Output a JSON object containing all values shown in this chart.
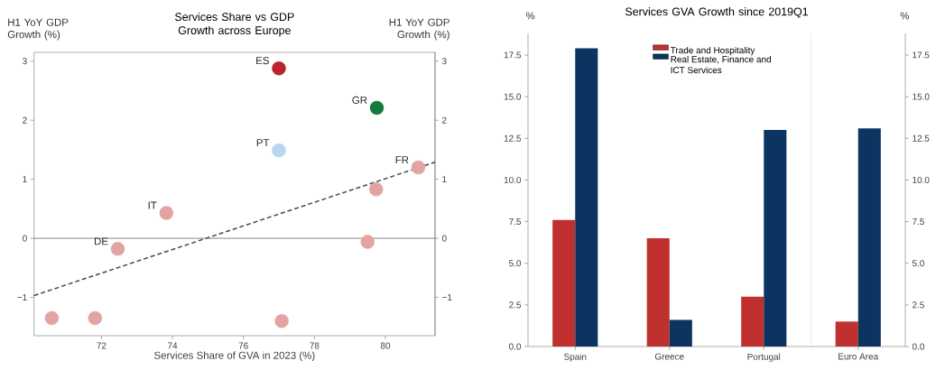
{
  "chart_data": [
    {
      "type": "scatter",
      "title": "Services Share vs GDP Growth across Europe",
      "xlabel": "Services Share of GVA in 2023 (%)",
      "ylabel": "H1 YoY GDP Growth (%)",
      "y2label": "H1 YoY GDP Growth (%)",
      "xlim": [
        70.1,
        81.4
      ],
      "xticks": [
        72,
        74,
        76,
        78,
        80
      ],
      "ylim": [
        -1.65,
        3.15
      ],
      "yticks": [
        {
          "value": -1,
          "label": "−1"
        },
        0,
        1,
        2,
        3
      ],
      "y2lim": [
        -1.65,
        3.15
      ],
      "y2ticks": [
        {
          "value": -1,
          "label": "−1"
        },
        0,
        1,
        2,
        3
      ],
      "ref_lines": [
        {
          "axis": "y",
          "value": 0,
          "color": "#555555"
        }
      ],
      "annotations": [
        {
          "text": "ES",
          "x": 77.0,
          "y": 2.88
        },
        {
          "text": "GR",
          "x": 79.76,
          "y": 2.21
        },
        {
          "text": "PT",
          "x": 77.0,
          "y": 1.49
        },
        {
          "text": "FR",
          "x": 80.93,
          "y": 1.2
        },
        {
          "text": "IT",
          "x": 73.83,
          "y": 0.43
        },
        {
          "text": "DE",
          "x": 72.46,
          "y": -0.18
        }
      ],
      "series": [
        {
          "type": "scatter",
          "marker": "circle",
          "x": [
            77.0,
            79.76,
            77.0,
            80.93,
            79.74,
            73.83,
            72.46,
            79.5,
            70.6,
            71.82,
            77.08
          ],
          "values": [
            2.88,
            2.21,
            1.49,
            1.2,
            0.83,
            0.43,
            -0.18,
            -0.06,
            -1.35,
            -1.35,
            -1.4
          ],
          "colors": [
            "#b8232e",
            "#137a3c",
            "#b9d6f0",
            "#e3a3a3",
            "#e3a3a3",
            "#e3a3a3",
            "#e3a3a3",
            "#e3a3a3",
            "#e3a3a3",
            "#e3a3a3",
            "#e3a3a3"
          ]
        },
        {
          "type": "line",
          "marker": "none",
          "line_style": "dashed",
          "color": "#3b4b5b",
          "x": [
            70.1,
            81.4
          ],
          "values": [
            -0.97,
            1.29
          ]
        }
      ]
    },
    {
      "type": "bar",
      "title": "Services GVA Growth since 2019Q1",
      "ylabel": "%",
      "y2label": "%",
      "legend": "top",
      "categories": [
        "Spain",
        "Greece",
        "Portugal",
        "Euro Area"
      ],
      "ylim": [
        0,
        18.8
      ],
      "yticks": [
        {
          "value": 0,
          "label": "0.0"
        },
        {
          "value": 2.5,
          "label": "2.5"
        },
        {
          "value": 5,
          "label": "5.0"
        },
        {
          "value": 7.5,
          "label": "7.5"
        },
        {
          "value": 10,
          "label": "10.0"
        },
        {
          "value": 12.5,
          "label": "12.5"
        },
        {
          "value": 15,
          "label": "15.0"
        },
        {
          "value": 17.5,
          "label": "17.5"
        }
      ],
      "y2lim": [
        0,
        18.8
      ],
      "y2ticks": [
        {
          "value": 0,
          "label": "0.0"
        },
        {
          "value": 2.5,
          "label": "2.5"
        },
        {
          "value": 5,
          "label": "5.0"
        },
        {
          "value": 7.5,
          "label": "7.5"
        },
        {
          "value": 10,
          "label": "10.0"
        },
        {
          "value": 12.5,
          "label": "12.5"
        },
        {
          "value": 15,
          "label": "15.0"
        },
        {
          "value": 17.5,
          "label": "17.5"
        }
      ],
      "series": [
        {
          "name": "Trade and Hospitality",
          "color": "#c0302f",
          "values": [
            7.6,
            6.5,
            3.0,
            1.5
          ]
        },
        {
          "name": "Real Estate, Finance and ICT Services",
          "color": "#0b3560",
          "values": [
            17.9,
            1.6,
            13.0,
            13.1
          ]
        }
      ]
    }
  ]
}
